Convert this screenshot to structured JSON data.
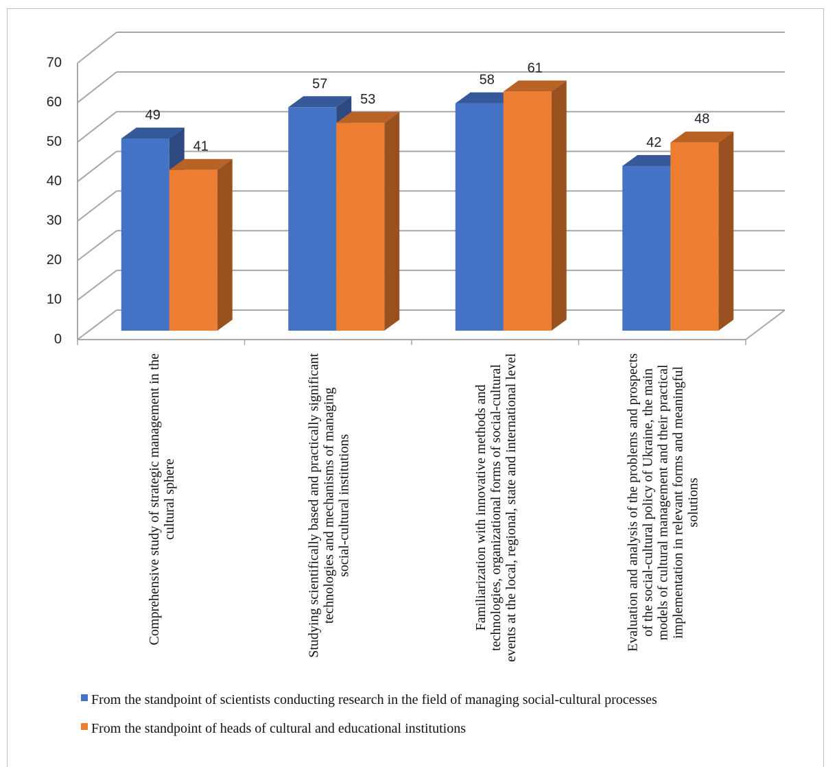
{
  "chart_data": {
    "type": "bar3d",
    "categories": [
      "Comprehensive study of strategic management in the cultural sphere",
      "Studying scientifically based and practically significant technologies and mechanisms of managing social-cultural institutions",
      "Familiarization with innovative methods and technologies, organizational forms of social-cultural events at the local, regional, state and international level",
      "Evaluation and analysis of the problems and prospects of the social-cultural policy of Ukraine, the main models of cultural management and their practical implementation in relevant forms and meaningful solutions"
    ],
    "series": [
      {
        "name": "From the standpoint of scientists conducting research in the field of managing social-cultural processes",
        "color": "#4472c4",
        "values": [
          49,
          57,
          58,
          42
        ]
      },
      {
        "name": "From the standpoint of heads of cultural and educational institutions",
        "color": "#ed7d31",
        "values": [
          41,
          53,
          61,
          48
        ]
      }
    ],
    "ylim": [
      0,
      70
    ],
    "yticks": [
      0,
      10,
      20,
      30,
      40,
      50,
      60,
      70
    ],
    "grid": true,
    "legend": "bottom"
  }
}
